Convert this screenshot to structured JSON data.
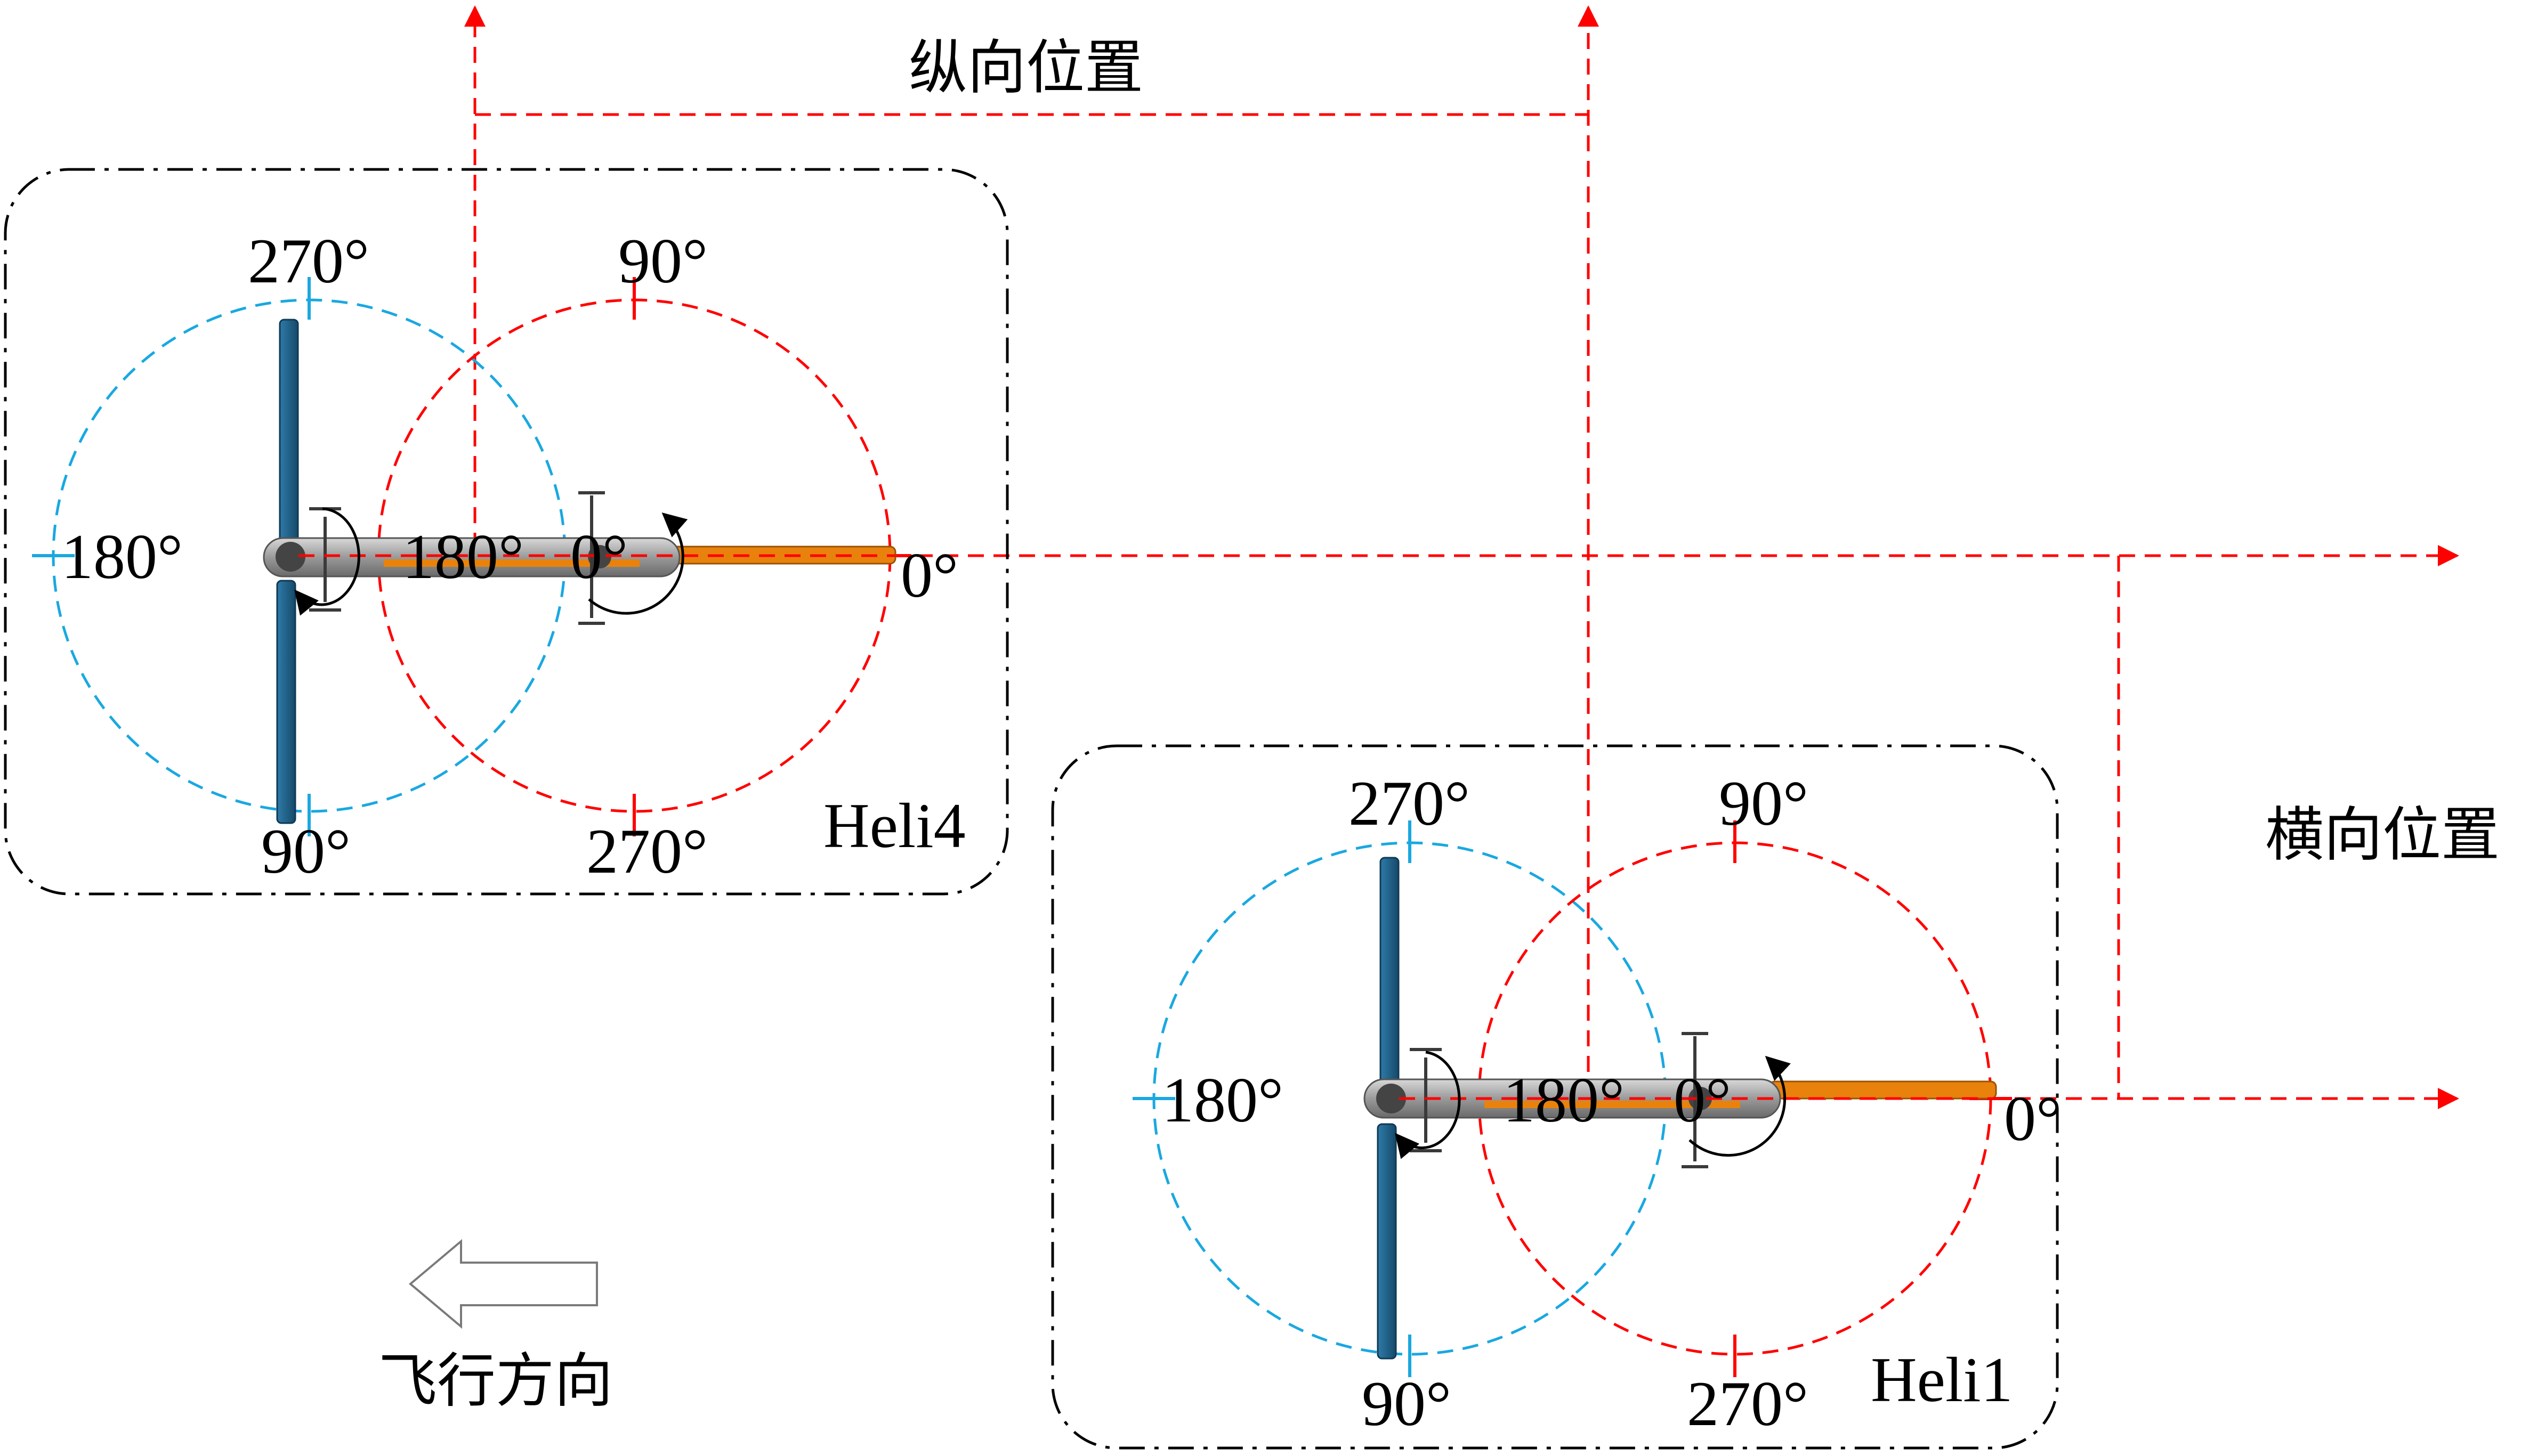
{
  "labels": {
    "longitudinal": "纵向位置",
    "lateral": "横向位置",
    "flight_direction": "飞行方向"
  },
  "helicopters": [
    {
      "name": "Heli4",
      "tail_rotor": {
        "top": "270°",
        "left": "180°",
        "bottom": "90°",
        "right": "0°"
      },
      "main_rotor": {
        "top": "90°",
        "left": "180°",
        "bottom": "270°",
        "right": "0°"
      }
    },
    {
      "name": "Heli1",
      "tail_rotor": {
        "top": "270°",
        "left": "180°",
        "bottom": "90°",
        "right": "0°"
      },
      "main_rotor": {
        "top": "90°",
        "left": "180°",
        "bottom": "270°",
        "right": "0°"
      }
    }
  ],
  "colors": {
    "reference_lines": "#ff0000",
    "tail_rotor_circle": "#1aa8e0",
    "main_rotor_circle": "#ff0000",
    "group_box": "#000000",
    "blade": "#1f5f85",
    "fuselage": "#a9a9a9",
    "tail_boom": "#e8820c"
  }
}
